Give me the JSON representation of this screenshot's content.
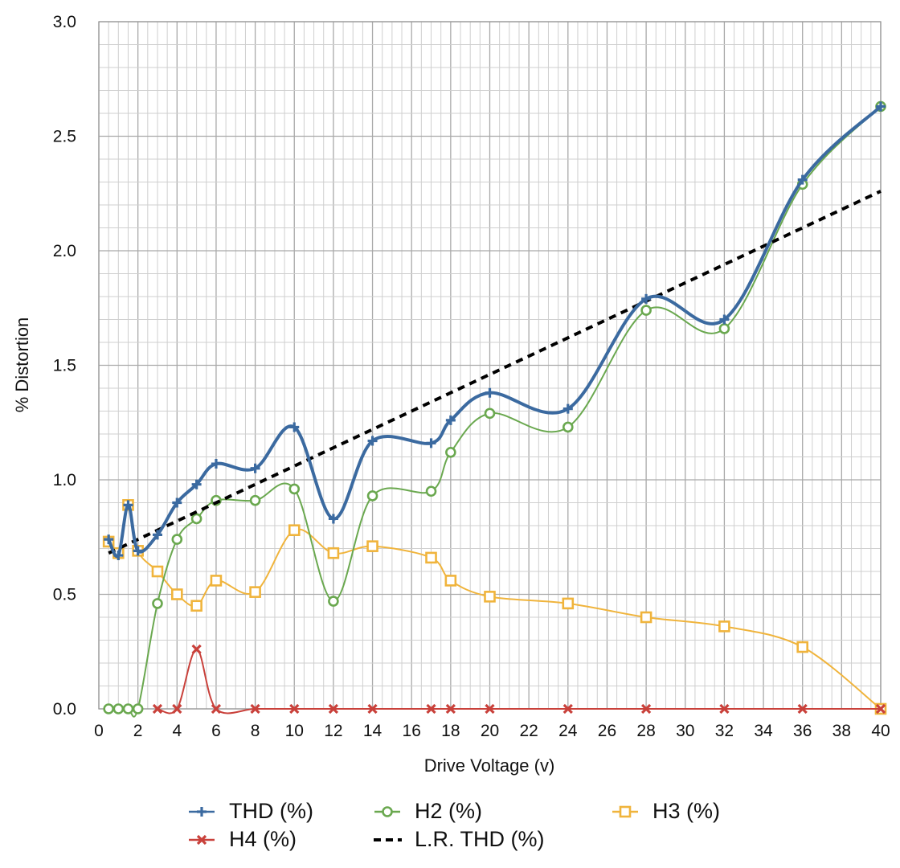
{
  "chart_data": {
    "type": "line",
    "title": "",
    "xlabel": "Drive Voltage (v)",
    "ylabel": "% Distortion",
    "xlim": [
      0,
      40
    ],
    "ylim": [
      0,
      3.0
    ],
    "x_ticks": [
      "0",
      "2",
      "4",
      "6",
      "8",
      "10",
      "12",
      "14",
      "16",
      "18",
      "20",
      "22",
      "24",
      "26",
      "28",
      "30",
      "32",
      "34",
      "36",
      "38",
      "40"
    ],
    "y_ticks": [
      "0.0",
      "0.5",
      "1.0",
      "1.5",
      "2.0",
      "2.5",
      "3.0"
    ],
    "grid": true,
    "legend_position": "bottom",
    "x": [
      0.5,
      1,
      1.5,
      2,
      3,
      4,
      5,
      6,
      8,
      10,
      12,
      14,
      17,
      18,
      20,
      24,
      28,
      32,
      36,
      40
    ],
    "series": [
      {
        "name": "THD (%)",
        "color": "#3b6aa0",
        "marker": "plus",
        "values": [
          0.74,
          0.67,
          0.89,
          0.69,
          0.76,
          0.9,
          0.98,
          1.07,
          1.05,
          1.23,
          0.83,
          1.17,
          1.16,
          1.26,
          1.38,
          1.31,
          1.79,
          1.7,
          2.31,
          2.63
        ]
      },
      {
        "name": "H2 (%)",
        "color": "#6aa84f",
        "marker": "circle",
        "values": [
          0.0,
          0.0,
          0.0,
          0.0,
          0.46,
          0.74,
          0.83,
          0.91,
          0.91,
          0.96,
          0.47,
          0.93,
          0.95,
          1.12,
          1.29,
          1.23,
          1.74,
          1.66,
          2.29,
          2.63
        ]
      },
      {
        "name": "H3 (%)",
        "color": "#f0b43c",
        "marker": "square",
        "values": [
          0.73,
          0.68,
          0.89,
          0.69,
          0.6,
          0.5,
          0.45,
          0.56,
          0.51,
          0.78,
          0.68,
          0.71,
          0.66,
          0.56,
          0.49,
          0.46,
          0.4,
          0.36,
          0.27,
          0.0
        ]
      },
      {
        "name": "H4 (%)",
        "color": "#c9413b",
        "marker": "x",
        "values": [
          null,
          null,
          null,
          null,
          0.0,
          0.0,
          0.26,
          0.0,
          0.0,
          0.0,
          0.0,
          0.0,
          0.0,
          0.0,
          0.0,
          0.0,
          0.0,
          0.0,
          0.0,
          0.0
        ]
      },
      {
        "name": "L.R. THD (%)",
        "color": "#000000",
        "marker": "none",
        "dashed": true,
        "x_line": [
          0.5,
          40
        ],
        "values_line": [
          0.68,
          2.26
        ]
      }
    ],
    "legend": [
      {
        "label": "THD (%)",
        "icon": "plus-icon"
      },
      {
        "label": "H2 (%)",
        "icon": "circle-icon"
      },
      {
        "label": "H3 (%)",
        "icon": "square-icon"
      },
      {
        "label": "H4 (%)",
        "icon": "x-icon"
      },
      {
        "label": "L.R. THD (%)",
        "icon": "dashed-line-icon"
      }
    ]
  }
}
